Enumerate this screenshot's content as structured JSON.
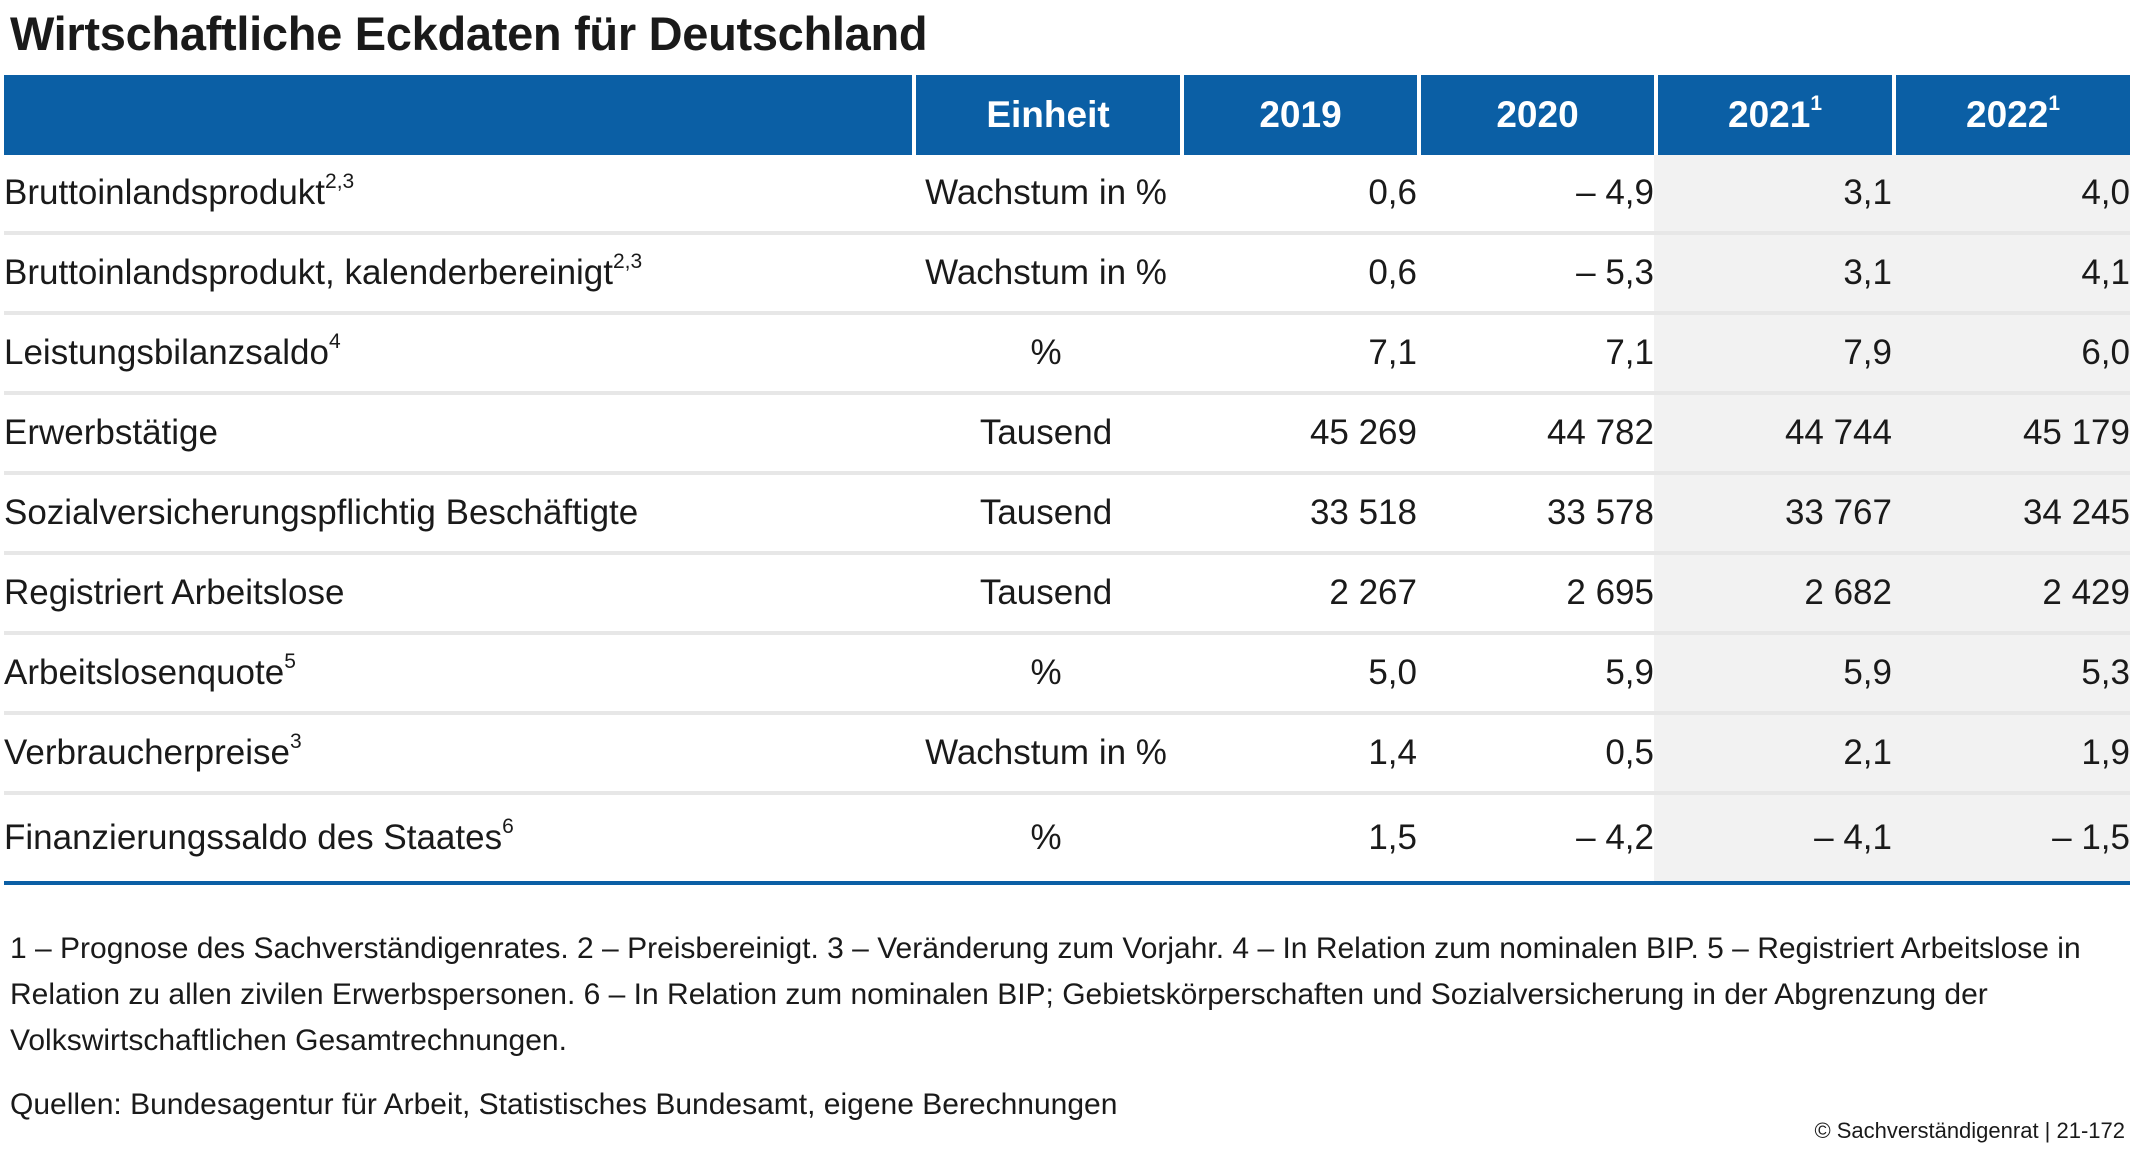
{
  "title": "Wirtschaftliche Eckdaten für Deutschland",
  "table": {
    "header": {
      "label": "",
      "unit": "Einheit",
      "years": [
        {
          "year": "2019",
          "note": ""
        },
        {
          "year": "2020",
          "note": ""
        },
        {
          "year": "2021",
          "note": "1"
        },
        {
          "year": "2022",
          "note": "1"
        }
      ]
    },
    "rows": [
      {
        "label": "Bruttoinlandsprodukt",
        "note": "2,3",
        "unit": "Wachstum in %",
        "values": [
          "0,6",
          "–  4,9",
          "3,1",
          "4,0"
        ]
      },
      {
        "label": "Bruttoinlandsprodukt, kalenderbereinigt",
        "note": "2,3",
        "unit": "Wachstum in %",
        "values": [
          "0,6",
          "–  5,3",
          "3,1",
          "4,1"
        ]
      },
      {
        "label": "Leistungsbilanzsaldo",
        "note": "4",
        "unit": "%",
        "values": [
          "7,1",
          "7,1",
          "7,9",
          "6,0"
        ]
      },
      {
        "label": "Erwerbstätige",
        "note": "",
        "unit": "Tausend",
        "values": [
          "45 269",
          "44 782",
          "44 744",
          "45 179"
        ]
      },
      {
        "label": "Sozialversicherungspflichtig Beschäftigte",
        "note": "",
        "unit": "Tausend",
        "values": [
          "33 518",
          "33 578",
          "33 767",
          "34 245"
        ]
      },
      {
        "label": "Registriert Arbeitslose",
        "note": "",
        "unit": "Tausend",
        "values": [
          "2 267",
          "2 695",
          "2 682",
          "2 429"
        ]
      },
      {
        "label": "Arbeitslosenquote",
        "note": "5",
        "unit": "%",
        "values": [
          "5,0",
          "5,9",
          "5,9",
          "5,3"
        ]
      },
      {
        "label": "Verbraucherpreise",
        "note": "3",
        "unit": "Wachstum in %",
        "values": [
          "1,4",
          "0,5",
          "2,1",
          "1,9"
        ]
      },
      {
        "label": "Finanzierungssaldo des Staates",
        "note": "6",
        "unit": "%",
        "values": [
          "1,5",
          "–  4,2",
          "–  4,1",
          "–  1,5"
        ]
      }
    ]
  },
  "footnotes": "1 – Prognose des Sachverständigenrates.  2 – Preisbereinigt.  3 – Veränderung zum Vorjahr.  4 – In Relation zum nominalen BIP.  5 – Registriert Arbeitslose in Relation zu allen zivilen Erwerbspersonen.  6 – In Relation zum nominalen BIP; Gebietskörperschaften und Sozialversicherung in der Abgrenzung der Volkswirtschaftlichen Gesamtrechnungen.",
  "sources": "Quellen: Bundesagentur für Arbeit, Statistisches Bundesamt, eigene Berechnungen",
  "copyright": "© Sachverständigenrat | 21-172",
  "colors": {
    "header_blue": "#0b5fa5",
    "forecast_shade": "#f2f2f2",
    "row_divider": "#e7e7e7"
  }
}
